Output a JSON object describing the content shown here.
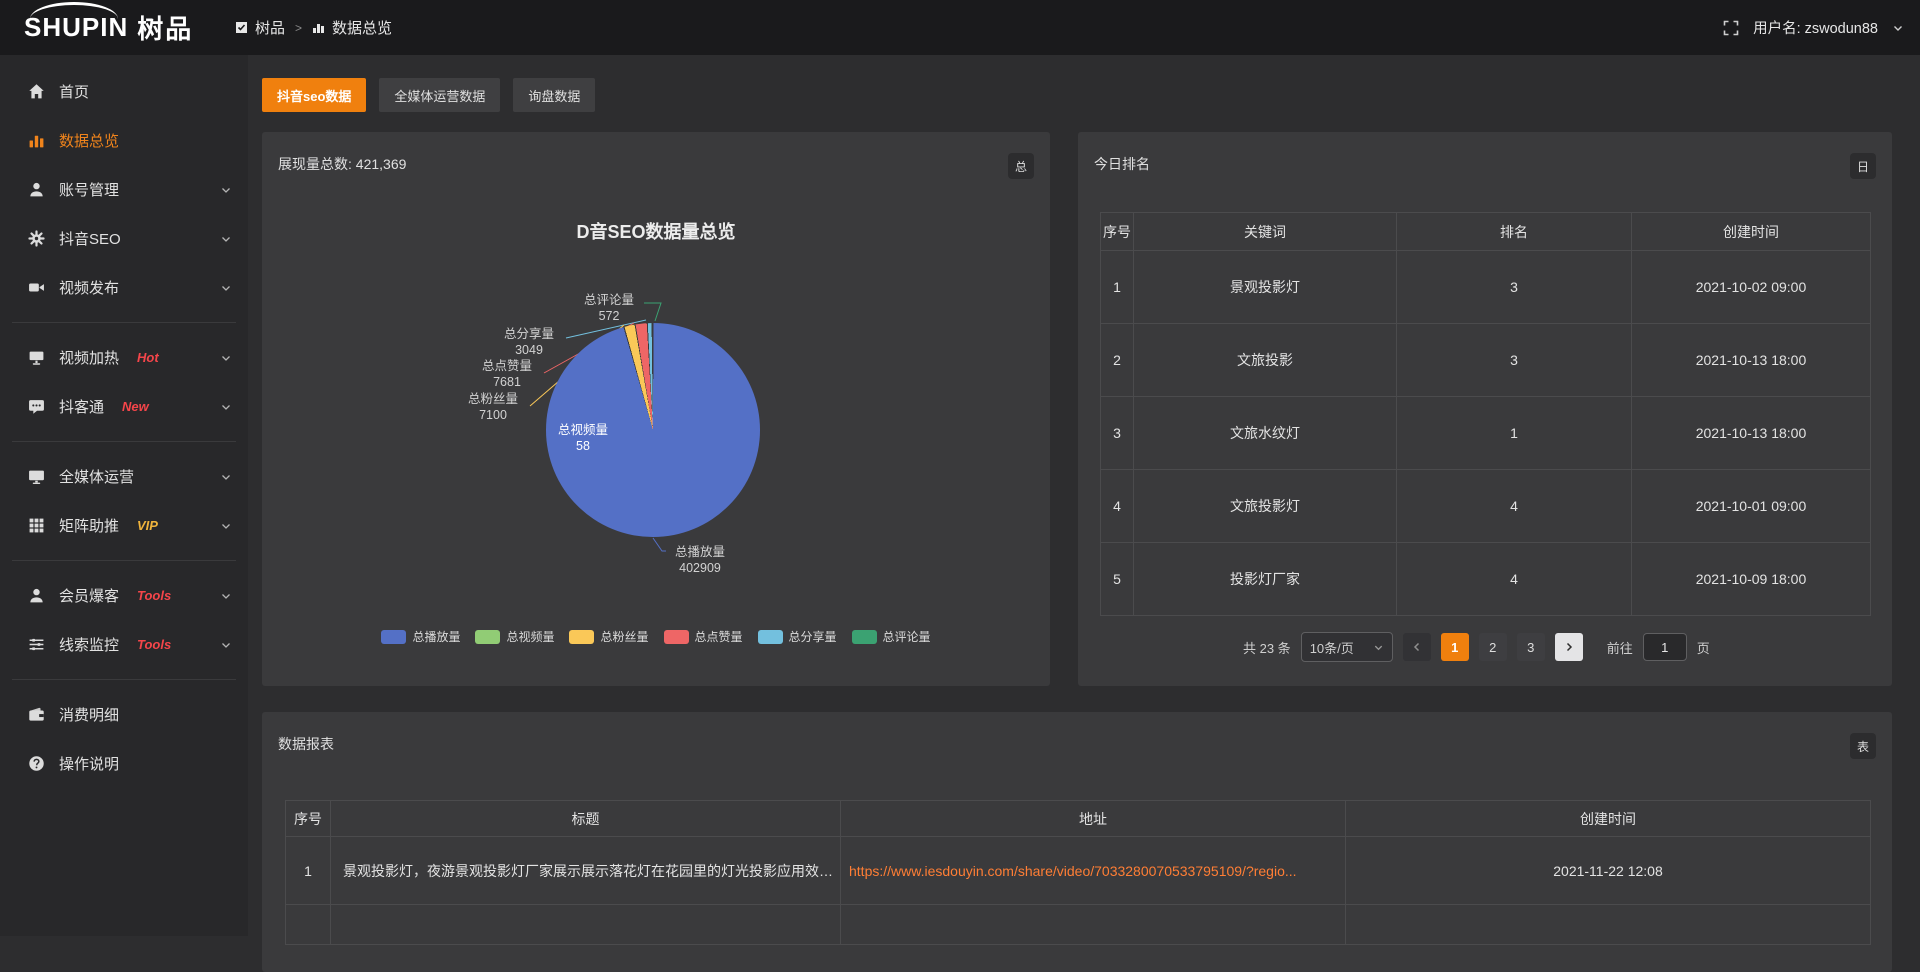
{
  "topbar": {
    "logo_en": "SHUPIN",
    "logo_cn": "树品",
    "breadcrumb": {
      "root": "树品",
      "separator": ">",
      "current": "数据总览"
    },
    "user_label": "用户名: zswodun88"
  },
  "sidebar": {
    "items": [
      {
        "label": "首页",
        "badge": "",
        "badge_color": ""
      },
      {
        "label": "数据总览",
        "badge": "",
        "badge_color": ""
      },
      {
        "label": "账号管理",
        "badge": "",
        "badge_color": ""
      },
      {
        "label": "抖音SEO",
        "badge": "",
        "badge_color": ""
      },
      {
        "label": "视频发布",
        "badge": "",
        "badge_color": ""
      },
      {
        "label": "视频加热",
        "badge": "Hot",
        "badge_color": "#f5454a"
      },
      {
        "label": "抖客通",
        "badge": "New",
        "badge_color": "#f5454a"
      },
      {
        "label": "全媒体运营",
        "badge": "",
        "badge_color": ""
      },
      {
        "label": "矩阵助推",
        "badge": "VIP",
        "badge_color": "#f0b43c"
      },
      {
        "label": "会员爆客",
        "badge": "Tools",
        "badge_color": "#f5454a"
      },
      {
        "label": "线索监控",
        "badge": "Tools",
        "badge_color": "#f5454a"
      },
      {
        "label": "消费明细",
        "badge": "",
        "badge_color": ""
      },
      {
        "label": "操作说明",
        "badge": "",
        "badge_color": ""
      }
    ]
  },
  "tabs": [
    {
      "label": "抖音seo数据"
    },
    {
      "label": "全媒体运营数据"
    },
    {
      "label": "询盘数据"
    }
  ],
  "overview_card": {
    "header_label": "展现量总数: 421,369",
    "corner_button": "总",
    "chart_data": {
      "type": "pie",
      "title": "D音SEO数据量总览",
      "legend_position": "bottom",
      "total": 421369,
      "series": [
        {
          "name": "总播放量",
          "value": 402909,
          "color": "#5470C6"
        },
        {
          "name": "总视频量",
          "value": 58,
          "color": "#91CC75"
        },
        {
          "name": "总粉丝量",
          "value": 7100,
          "color": "#FAC858"
        },
        {
          "name": "总点赞量",
          "value": 7681,
          "color": "#EE6666"
        },
        {
          "name": "总分享量",
          "value": 3049,
          "color": "#73C0DE"
        },
        {
          "name": "总评论量",
          "value": 572,
          "color": "#3BA272"
        }
      ]
    }
  },
  "ranking_card": {
    "header_label": "今日排名",
    "corner_button": "日",
    "columns": [
      "序号",
      "关键词",
      "排名",
      "创建时间"
    ],
    "rows": [
      {
        "no": "1",
        "keyword": "景观投影灯",
        "rank": "3",
        "created": "2021-10-02 09:00"
      },
      {
        "no": "2",
        "keyword": "文旅投影",
        "rank": "3",
        "created": "2021-10-13 18:00"
      },
      {
        "no": "3",
        "keyword": "文旅水纹灯",
        "rank": "1",
        "created": "2021-10-13 18:00"
      },
      {
        "no": "4",
        "keyword": "文旅投影灯",
        "rank": "4",
        "created": "2021-10-01 09:00"
      },
      {
        "no": "5",
        "keyword": "投影灯厂家",
        "rank": "4",
        "created": "2021-10-09 18:00"
      }
    ],
    "pagination": {
      "total_label": "共 23 条",
      "page_size": "10条/页",
      "pages": [
        "1",
        "2",
        "3"
      ],
      "current_page": "1",
      "goto_label": "前往",
      "goto_value": "1",
      "goto_unit": "页"
    }
  },
  "report_card": {
    "header_label": "数据报表",
    "corner_button": "表",
    "columns": [
      "序号",
      "标题",
      "地址",
      "创建时间"
    ],
    "rows": [
      {
        "no": "1",
        "title": "景观投影灯，夜游景观投影灯厂家展示展示落花灯在花园里的灯光投影应用效果 #",
        "url": "https://www.iesdouyin.com/share/video/7033280070533795109/?regio...",
        "created": "2021-11-22 12:08"
      }
    ]
  }
}
